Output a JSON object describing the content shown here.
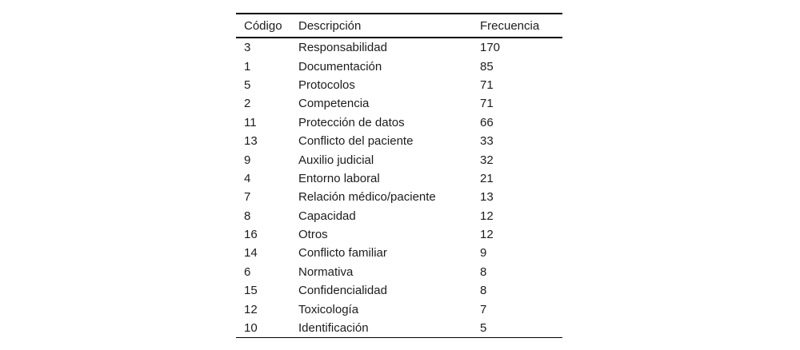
{
  "chart_data": {
    "type": "table",
    "title": "",
    "columns": [
      "Código",
      "Descripción",
      "Frecuencia"
    ],
    "rows": [
      [
        "3",
        "Responsabilidad",
        "170"
      ],
      [
        "1",
        "Documentación",
        "85"
      ],
      [
        "5",
        "Protocolos",
        "71"
      ],
      [
        "2",
        "Competencia",
        "71"
      ],
      [
        "11",
        "Protección de datos",
        "66"
      ],
      [
        "13",
        "Conflicto del paciente",
        "33"
      ],
      [
        "9",
        "Auxilio judicial",
        "32"
      ],
      [
        "4",
        "Entorno laboral",
        "21"
      ],
      [
        "7",
        "Relación médico/paciente",
        "13"
      ],
      [
        "8",
        "Capacidad",
        "12"
      ],
      [
        "16",
        "Otros",
        "12"
      ],
      [
        "14",
        "Conflicto familiar",
        "9"
      ],
      [
        "6",
        "Normativa",
        "8"
      ],
      [
        "15",
        "Confidencialidad",
        "8"
      ],
      [
        "12",
        "Toxicología",
        "7"
      ],
      [
        "10",
        "Identificación",
        "5"
      ]
    ],
    "layout": {
      "rules": "horizontal only (top, under header, bottom)",
      "header_weight": "regular",
      "alignment": "left"
    }
  },
  "colors": {
    "background": "#ffffff",
    "text": "#1c1c1c",
    "rule": "#000000"
  }
}
